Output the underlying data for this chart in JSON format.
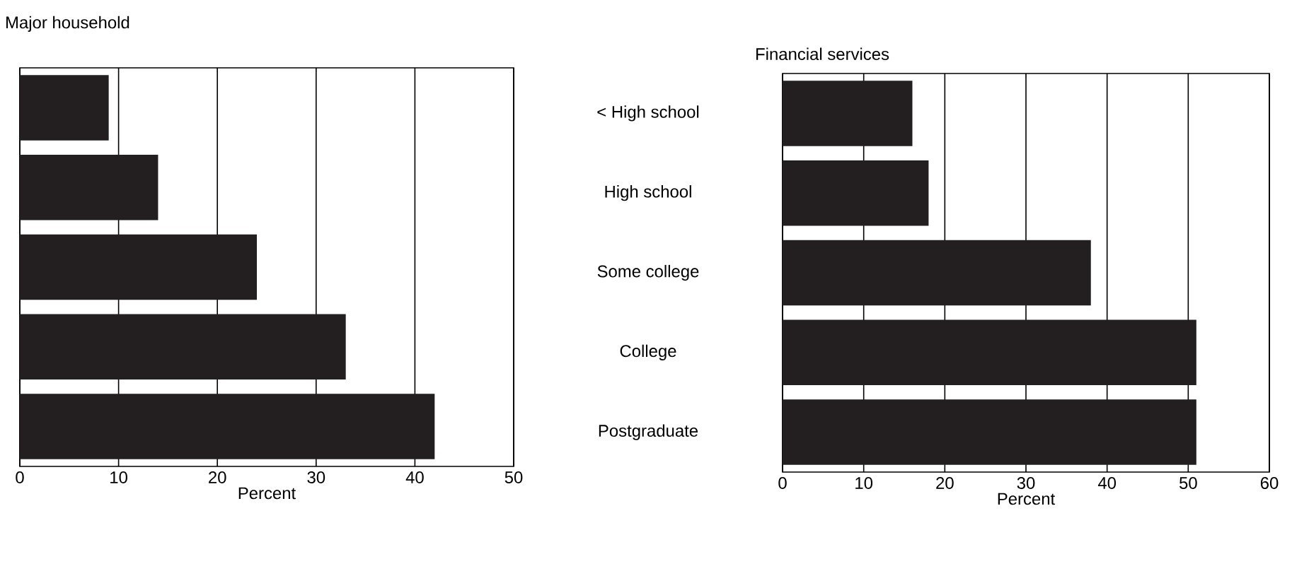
{
  "chart_data": [
    {
      "type": "bar",
      "orientation": "horizontal",
      "title": "Major household",
      "xlabel": "Percent",
      "categories": [
        null,
        null,
        null,
        null,
        null
      ],
      "values": [
        9,
        14,
        24,
        33,
        42
      ],
      "color": "#231f20",
      "xlim": [
        0,
        50
      ],
      "xticks": [
        0,
        10,
        20,
        30,
        40,
        50
      ],
      "grid": "x"
    },
    {
      "type": "bar",
      "orientation": "horizontal",
      "title": "Financial services",
      "xlabel": "Percent",
      "categories": [
        "< High school",
        "High school",
        "Some college",
        "College",
        "Postgraduate"
      ],
      "values": [
        16,
        18,
        38,
        51,
        51
      ],
      "color": "#231f20",
      "xlim": [
        0,
        60
      ],
      "xticks": [
        0,
        10,
        20,
        30,
        40,
        50,
        60
      ],
      "grid": "x"
    }
  ]
}
